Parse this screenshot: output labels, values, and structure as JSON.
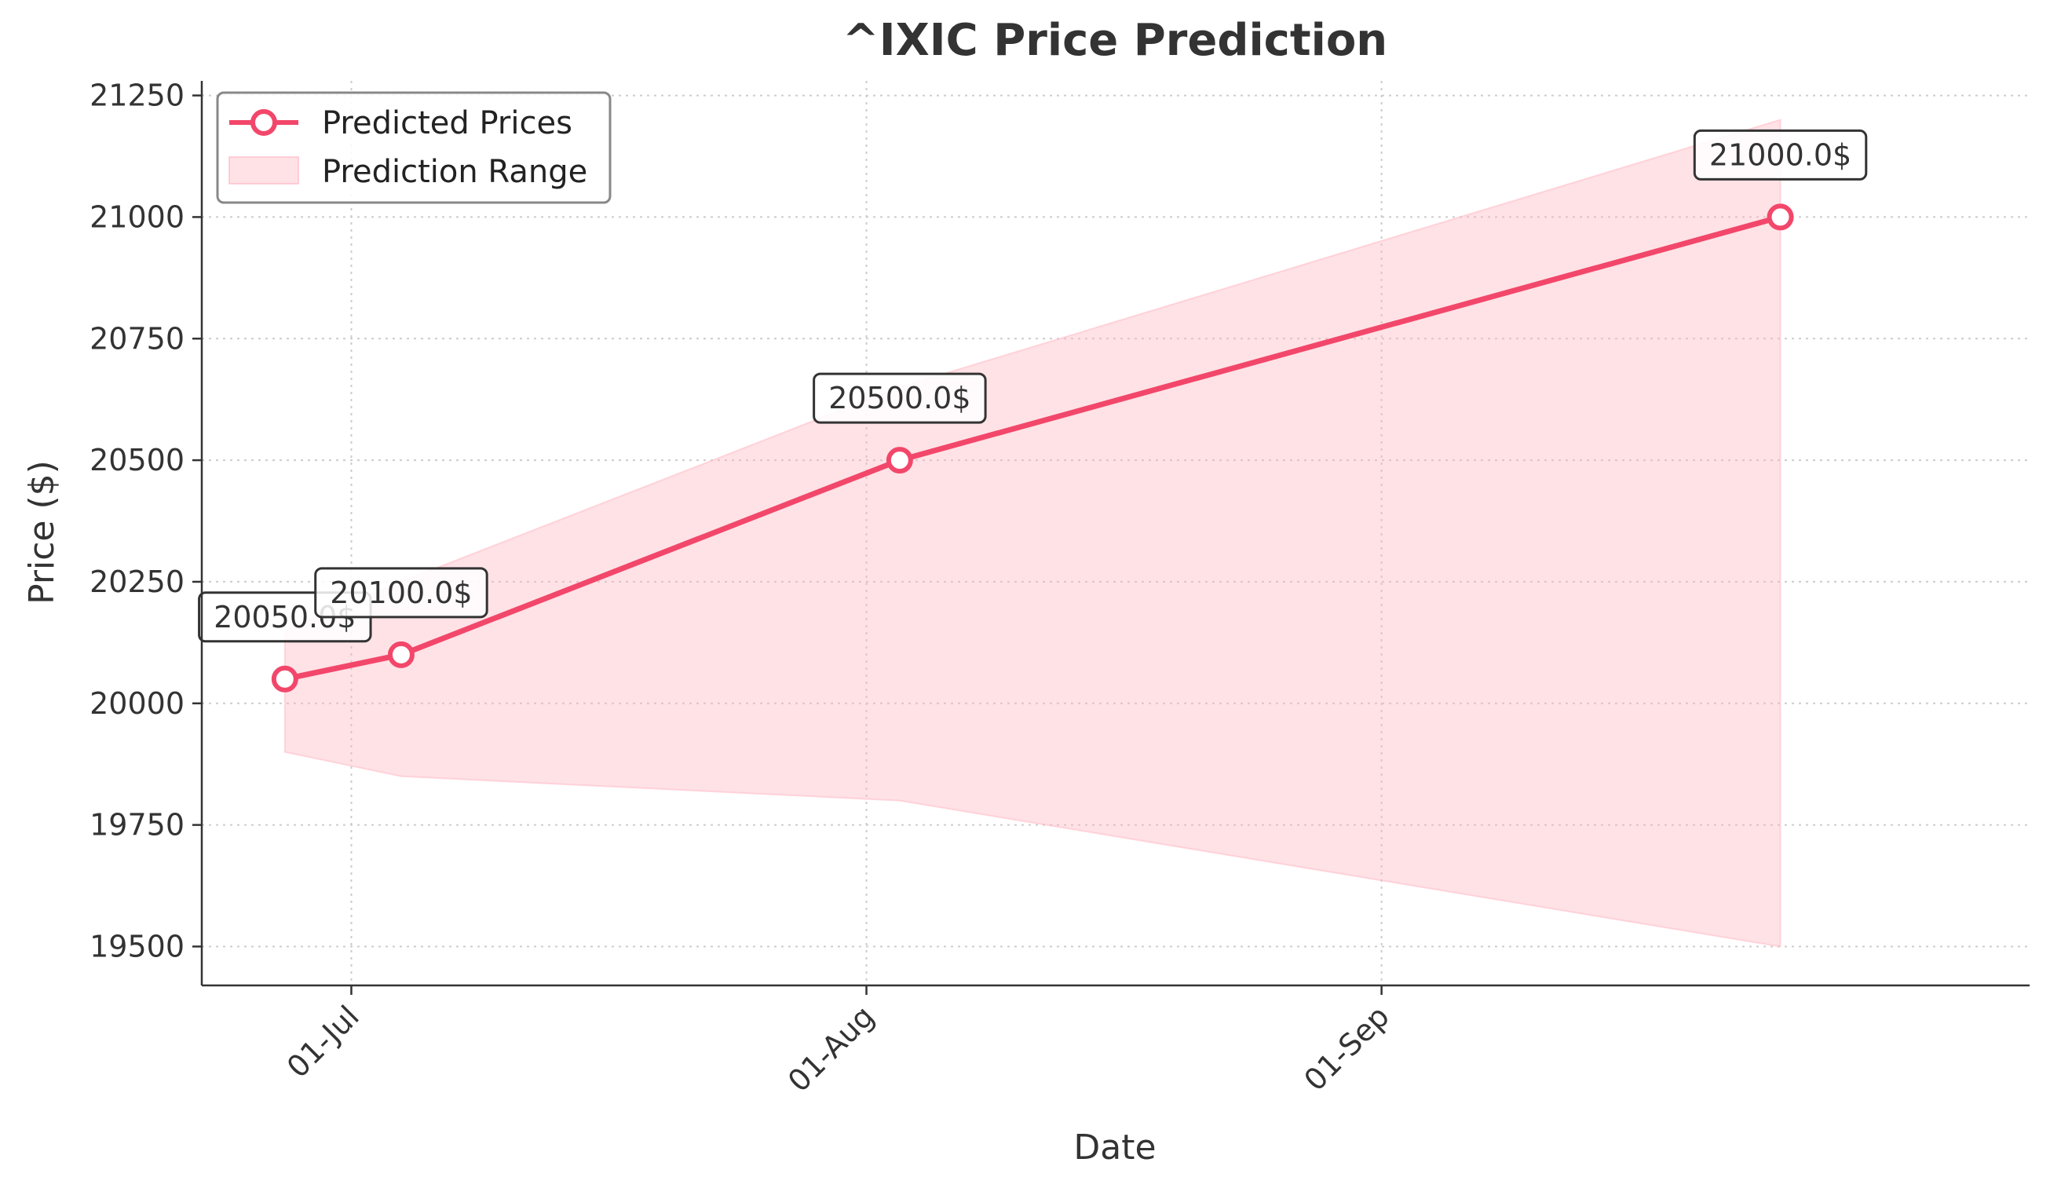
{
  "chart_data": {
    "type": "line",
    "title": "^IXIC Price Prediction",
    "xlabel": "Date",
    "ylabel": "Price ($)",
    "x_ticks": [
      "2024-07-01",
      "2024-08-01",
      "2024-09-01"
    ],
    "x_tick_labels": [
      "01-Jul",
      "01-Aug",
      "01-Sep"
    ],
    "y_ticks": [
      19500,
      19750,
      20000,
      20250,
      20500,
      20750,
      21000,
      21250
    ],
    "xlim": [
      "2024-06-22",
      "2024-10-10"
    ],
    "ylim": [
      19420,
      21280
    ],
    "grid": true,
    "legend_position": "top-left",
    "series": [
      {
        "name": "Predicted Prices",
        "color": "#f2476a",
        "x": [
          "2024-06-27",
          "2024-07-04",
          "2024-08-03",
          "2024-09-25"
        ],
        "values": [
          20050,
          20100,
          20500,
          21000
        ],
        "labels": [
          "20050.0$",
          "20100.0$",
          "20500.0$",
          "21000.0$"
        ]
      }
    ],
    "range": {
      "name": "Prediction Range",
      "color": "#ffb6c1",
      "x": [
        "2024-06-27",
        "2024-07-04",
        "2024-08-03",
        "2024-09-25"
      ],
      "upper": [
        20150,
        20250,
        20650,
        21200
      ],
      "lower": [
        19900,
        19850,
        19800,
        19500
      ]
    }
  }
}
